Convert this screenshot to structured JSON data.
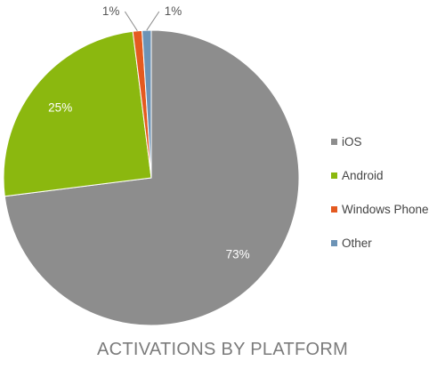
{
  "chart_data": {
    "type": "pie",
    "title": "ACTIVATIONS BY PLATFORM",
    "categories": [
      "iOS",
      "Android",
      "Windows Phone",
      "Other"
    ],
    "values": [
      73,
      25,
      1,
      1
    ],
    "data_labels": [
      "73%",
      "25%",
      "1%",
      "1%"
    ],
    "colors": [
      "#8d8d8d",
      "#8bb80f",
      "#e45a20",
      "#6c93b6"
    ],
    "start": "top, clockwise",
    "legend_position": "right"
  }
}
